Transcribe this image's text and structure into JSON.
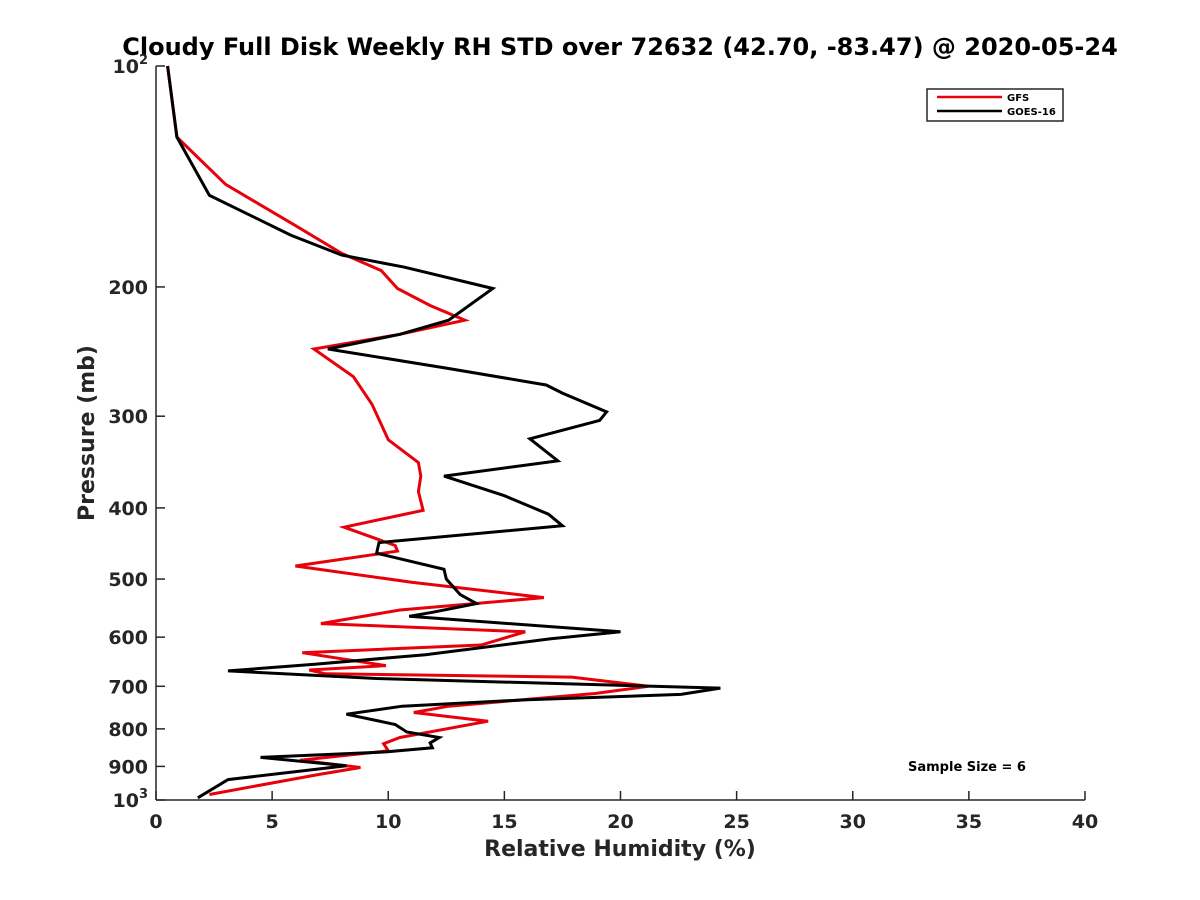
{
  "chart_data": {
    "type": "line",
    "title": "Cloudy Full Disk Weekly RH STD over 72632 (42.70, -83.47) @ 2020-05-24",
    "xlabel": "Relative Humidity (%)",
    "ylabel": "Pressure (mb)",
    "xlim": [
      0,
      40
    ],
    "ylim": [
      100,
      1000
    ],
    "y_scale": "log",
    "y_reversed": true,
    "grid": false,
    "legend_position": "top-right",
    "x_ticks": [
      "0",
      "5",
      "10",
      "15",
      "20",
      "25",
      "30",
      "35",
      "40"
    ],
    "x_tick_values": [
      0,
      5,
      10,
      15,
      20,
      25,
      30,
      35,
      40
    ],
    "y_ticks": [
      {
        "value": 100,
        "base": "10",
        "exp": "2"
      },
      {
        "value": 200,
        "label": "200"
      },
      {
        "value": 300,
        "label": "300"
      },
      {
        "value": 400,
        "label": "400"
      },
      {
        "value": 500,
        "label": "500"
      },
      {
        "value": 600,
        "label": "600"
      },
      {
        "value": 700,
        "label": "700"
      },
      {
        "value": 800,
        "label": "800"
      },
      {
        "value": 900,
        "label": "900"
      },
      {
        "value": 1000,
        "base": "10",
        "exp": "3"
      }
    ],
    "annotation": "Sample Size = 6",
    "series": [
      {
        "name": "GFS",
        "color": "#e8000b",
        "points": [
          [
            0.5,
            100
          ],
          [
            0.9,
            125
          ],
          [
            3.0,
            145
          ],
          [
            6.0,
            165
          ],
          [
            8.0,
            180
          ],
          [
            9.7,
            190
          ],
          [
            10.4,
            201
          ],
          [
            11.8,
            212
          ],
          [
            13.3,
            222
          ],
          [
            10.5,
            232
          ],
          [
            6.8,
            243
          ],
          [
            8.5,
            265
          ],
          [
            9.3,
            289
          ],
          [
            10.0,
            323
          ],
          [
            11.3,
            347
          ],
          [
            11.4,
            362
          ],
          [
            11.3,
            380
          ],
          [
            11.5,
            403
          ],
          [
            8.1,
            425
          ],
          [
            10.3,
            450
          ],
          [
            10.4,
            458
          ],
          [
            6.0,
            480
          ],
          [
            11.0,
            505
          ],
          [
            16.7,
            530
          ],
          [
            10.5,
            551
          ],
          [
            7.1,
            575
          ],
          [
            15.9,
            590
          ],
          [
            14.0,
            615
          ],
          [
            6.3,
            630
          ],
          [
            9.9,
            656
          ],
          [
            6.6,
            665
          ],
          [
            7.3,
            673
          ],
          [
            17.9,
            680
          ],
          [
            21.2,
            700
          ],
          [
            18.9,
            716
          ],
          [
            12.6,
            745
          ],
          [
            11.1,
            760
          ],
          [
            14.3,
            781
          ],
          [
            10.5,
            822
          ],
          [
            9.8,
            838
          ],
          [
            10.0,
            857
          ],
          [
            6.2,
            883
          ],
          [
            8.8,
            903
          ],
          [
            7.0,
            923
          ],
          [
            2.3,
            983
          ]
        ]
      },
      {
        "name": "GOES-16",
        "color": "#000000",
        "points": [
          [
            0.5,
            100
          ],
          [
            0.9,
            125
          ],
          [
            2.3,
            150
          ],
          [
            5.8,
            170
          ],
          [
            8.0,
            181
          ],
          [
            10.7,
            188
          ],
          [
            14.5,
            201
          ],
          [
            12.6,
            222
          ],
          [
            10.5,
            232
          ],
          [
            7.4,
            243
          ],
          [
            12.5,
            258
          ],
          [
            16.8,
            272
          ],
          [
            17.5,
            279
          ],
          [
            19.4,
            296
          ],
          [
            19.1,
            304
          ],
          [
            16.1,
            322
          ],
          [
            17.3,
            345
          ],
          [
            12.4,
            362
          ],
          [
            15.0,
            385
          ],
          [
            16.9,
            408
          ],
          [
            17.5,
            423
          ],
          [
            9.6,
            446
          ],
          [
            9.5,
            461
          ],
          [
            12.4,
            485
          ],
          [
            12.5,
            500
          ],
          [
            13.1,
            525
          ],
          [
            13.8,
            540
          ],
          [
            11.9,
            555
          ],
          [
            10.9,
            562
          ],
          [
            20.0,
            590
          ],
          [
            17.0,
            603
          ],
          [
            11.6,
            634
          ],
          [
            6.9,
            653
          ],
          [
            3.1,
            667
          ],
          [
            9.5,
            683
          ],
          [
            18.0,
            695
          ],
          [
            24.3,
            704
          ],
          [
            22.6,
            718
          ],
          [
            16.0,
            730
          ],
          [
            10.6,
            745
          ],
          [
            8.2,
            764
          ],
          [
            10.3,
            789
          ],
          [
            10.8,
            808
          ],
          [
            12.2,
            822
          ],
          [
            11.8,
            836
          ],
          [
            11.9,
            849
          ],
          [
            9.9,
            860
          ],
          [
            4.5,
            875
          ],
          [
            8.2,
            898
          ],
          [
            3.1,
            938
          ],
          [
            1.8,
            993
          ]
        ]
      }
    ]
  }
}
